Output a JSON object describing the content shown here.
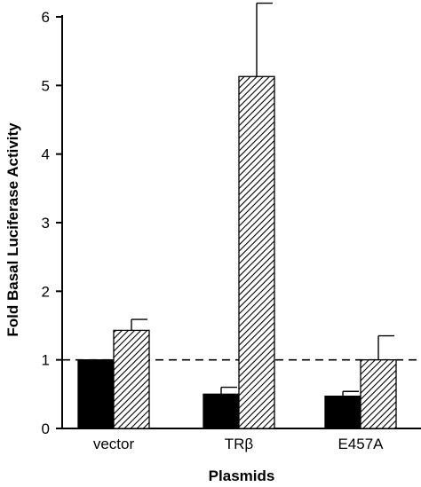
{
  "chart_data": {
    "type": "bar",
    "title": "",
    "xlabel": "Plasmids",
    "ylabel": "Fold Basal Luciferase Activity",
    "categories": [
      "vector",
      "TRβ",
      "E457A"
    ],
    "ylim": [
      0,
      6
    ],
    "yticks": [
      0,
      1,
      2,
      3,
      4,
      5,
      6
    ],
    "series": [
      {
        "fill": "solid-black",
        "values": [
          1.0,
          0.5,
          0.47
        ],
        "errors": [
          0.0,
          0.1,
          0.07
        ]
      },
      {
        "fill": "hatched",
        "values": [
          1.43,
          5.13,
          1.0
        ],
        "errors": [
          0.16,
          1.07,
          0.35
        ]
      }
    ],
    "reference_line": {
      "y": 1.0,
      "style": "dashed"
    },
    "grid": false,
    "legend": "none"
  }
}
